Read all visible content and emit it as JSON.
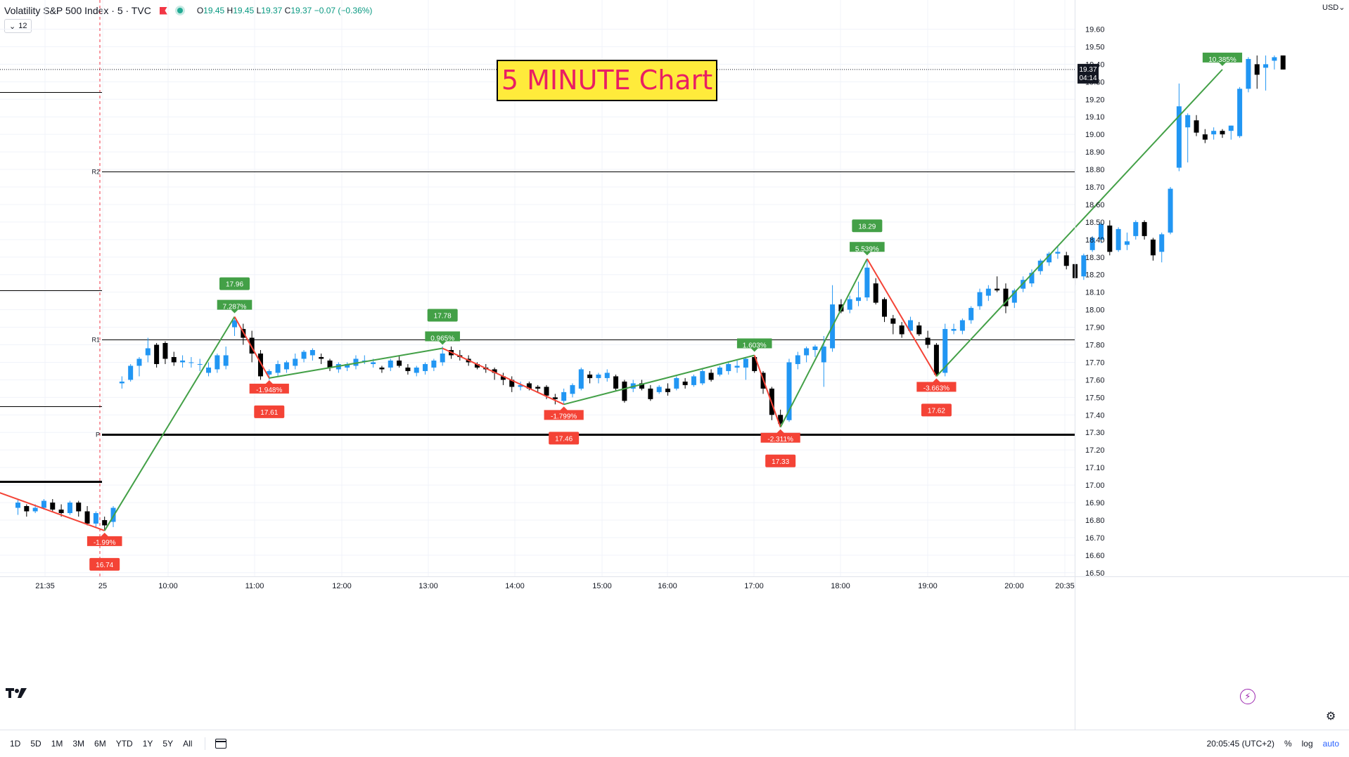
{
  "header": {
    "symbol_title": "Volatility S&P 500 Index · 5 · TVC",
    "ohlc": {
      "open_label": "O",
      "open": "19.45",
      "high_label": "H",
      "high": "19.45",
      "low_label": "L",
      "low": "19.37",
      "close_label": "C",
      "close": "19.37",
      "change": "−0.07 (−0.36%)"
    },
    "indicator_count": "12",
    "currency": "USD"
  },
  "overlay_title": "5 MINUTE Chart",
  "colors": {
    "up": "#2196f3",
    "down": "#000000",
    "zigzag_up": "#43a047",
    "zigzag_down": "#f44336",
    "label_up": "#43a047",
    "label_down": "#f44336",
    "title_bg": "#ffeb3b",
    "title_text": "#e91e63"
  },
  "chart_data": {
    "type": "candlestick",
    "ylim": [
      16.42,
      19.75
    ],
    "y_ticks": [
      16.5,
      16.6,
      16.7,
      16.8,
      16.9,
      17.0,
      17.1,
      17.2,
      17.3,
      17.4,
      17.5,
      17.6,
      17.7,
      17.8,
      17.9,
      18.0,
      18.1,
      18.2,
      18.3,
      18.4,
      18.5,
      18.6,
      18.7,
      18.8,
      18.9,
      19.0,
      19.1,
      19.2,
      19.3,
      19.4,
      19.5,
      19.6
    ],
    "x_ticks": [
      "21:35",
      "25",
      "10:00",
      "11:00",
      "12:00",
      "13:00",
      "14:00",
      "15:00",
      "16:00",
      "17:00",
      "18:00",
      "19:00",
      "20:00",
      "20:35"
    ],
    "last_price": "19.37",
    "countdown": "04:14",
    "pivot_levels": [
      {
        "label": "R2",
        "value": 18.79,
        "weight": "thin"
      },
      {
        "label": "R1",
        "value": 17.83,
        "weight": "thin"
      },
      {
        "label": "P",
        "value": 17.29,
        "weight": "thick"
      },
      {
        "label": "",
        "value": 19.24,
        "weight": "thin",
        "session": "prior"
      },
      {
        "label": "",
        "value": 18.11,
        "weight": "thin",
        "session": "prior"
      },
      {
        "label": "",
        "value": 17.45,
        "weight": "thin",
        "session": "prior"
      },
      {
        "label": "",
        "value": 17.02,
        "weight": "thick",
        "session": "prior"
      }
    ],
    "candles": [
      [
        16.87,
        16.92,
        16.83,
        16.9
      ],
      [
        16.88,
        16.89,
        16.82,
        16.85
      ],
      [
        16.85,
        16.89,
        16.84,
        16.87
      ],
      [
        16.87,
        16.92,
        16.86,
        16.91
      ],
      [
        16.9,
        16.92,
        16.85,
        16.86
      ],
      [
        16.86,
        16.89,
        16.82,
        16.84
      ],
      [
        16.84,
        16.91,
        16.83,
        16.9
      ],
      [
        16.9,
        16.91,
        16.82,
        16.85
      ],
      [
        16.85,
        16.88,
        16.77,
        16.78
      ],
      [
        16.78,
        16.85,
        16.76,
        16.84
      ],
      [
        16.8,
        16.82,
        16.74,
        16.77
      ],
      [
        16.79,
        16.88,
        16.76,
        16.87
      ],
      [
        17.58,
        17.62,
        17.55,
        17.59
      ],
      [
        17.6,
        17.69,
        17.59,
        17.68
      ],
      [
        17.68,
        17.73,
        17.62,
        17.72
      ],
      [
        17.74,
        17.84,
        17.7,
        17.78
      ],
      [
        17.8,
        17.81,
        17.67,
        17.69
      ],
      [
        17.81,
        17.82,
        17.69,
        17.72
      ],
      [
        17.73,
        17.76,
        17.68,
        17.7
      ],
      [
        17.7,
        17.74,
        17.67,
        17.71
      ],
      [
        17.7,
        17.73,
        17.67,
        17.7
      ],
      [
        17.69,
        17.72,
        17.65,
        17.69
      ],
      [
        17.64,
        17.7,
        17.62,
        17.67
      ],
      [
        17.66,
        17.75,
        17.64,
        17.74
      ],
      [
        17.68,
        17.79,
        17.66,
        17.74
      ],
      [
        17.9,
        17.96,
        17.85,
        17.94
      ],
      [
        17.89,
        17.92,
        17.8,
        17.84
      ],
      [
        17.84,
        17.88,
        17.7,
        17.75
      ],
      [
        17.75,
        17.77,
        17.6,
        17.62
      ],
      [
        17.63,
        17.66,
        17.6,
        17.65
      ],
      [
        17.64,
        17.71,
        17.62,
        17.69
      ],
      [
        17.66,
        17.71,
        17.64,
        17.7
      ],
      [
        17.68,
        17.75,
        17.66,
        17.72
      ],
      [
        17.72,
        17.77,
        17.7,
        17.76
      ],
      [
        17.74,
        17.78,
        17.71,
        17.77
      ],
      [
        17.73,
        17.75,
        17.69,
        17.72
      ],
      [
        17.71,
        17.72,
        17.65,
        17.67
      ],
      [
        17.66,
        17.7,
        17.64,
        17.69
      ],
      [
        17.67,
        17.7,
        17.65,
        17.69
      ],
      [
        17.68,
        17.74,
        17.66,
        17.72
      ],
      [
        17.71,
        17.74,
        17.69,
        17.71
      ],
      [
        17.69,
        17.72,
        17.67,
        17.7
      ],
      [
        17.67,
        17.68,
        17.64,
        17.66
      ],
      [
        17.67,
        17.72,
        17.65,
        17.71
      ],
      [
        17.71,
        17.74,
        17.67,
        17.68
      ],
      [
        17.67,
        17.69,
        17.63,
        17.65
      ],
      [
        17.64,
        17.68,
        17.62,
        17.67
      ],
      [
        17.65,
        17.7,
        17.63,
        17.69
      ],
      [
        17.67,
        17.72,
        17.65,
        17.71
      ],
      [
        17.7,
        17.79,
        17.68,
        17.75
      ],
      [
        17.77,
        17.79,
        17.72,
        17.74
      ],
      [
        17.74,
        17.77,
        17.71,
        17.73
      ],
      [
        17.72,
        17.74,
        17.68,
        17.7
      ],
      [
        17.69,
        17.7,
        17.66,
        17.67
      ],
      [
        17.67,
        17.69,
        17.64,
        17.66
      ],
      [
        17.66,
        17.67,
        17.6,
        17.64
      ],
      [
        17.62,
        17.64,
        17.57,
        17.6
      ],
      [
        17.6,
        17.62,
        17.53,
        17.56
      ],
      [
        17.56,
        17.59,
        17.54,
        17.57
      ],
      [
        17.58,
        17.59,
        17.54,
        17.55
      ],
      [
        17.56,
        17.57,
        17.53,
        17.55
      ],
      [
        17.56,
        17.57,
        17.49,
        17.51
      ],
      [
        17.5,
        17.52,
        17.46,
        17.49
      ],
      [
        17.48,
        17.55,
        17.46,
        17.53
      ],
      [
        17.52,
        17.58,
        17.5,
        17.57
      ],
      [
        17.55,
        17.67,
        17.54,
        17.66
      ],
      [
        17.63,
        17.65,
        17.58,
        17.61
      ],
      [
        17.61,
        17.64,
        17.58,
        17.63
      ],
      [
        17.61,
        17.66,
        17.59,
        17.64
      ],
      [
        17.62,
        17.63,
        17.54,
        17.55
      ],
      [
        17.59,
        17.6,
        17.47,
        17.48
      ],
      [
        17.55,
        17.6,
        17.53,
        17.58
      ],
      [
        17.58,
        17.6,
        17.54,
        17.55
      ],
      [
        17.55,
        17.57,
        17.48,
        17.49
      ],
      [
        17.53,
        17.57,
        17.52,
        17.56
      ],
      [
        17.55,
        17.58,
        17.51,
        17.53
      ],
      [
        17.55,
        17.62,
        17.54,
        17.61
      ],
      [
        17.59,
        17.61,
        17.55,
        17.57
      ],
      [
        17.57,
        17.63,
        17.56,
        17.62
      ],
      [
        17.58,
        17.66,
        17.57,
        17.65
      ],
      [
        17.64,
        17.66,
        17.59,
        17.6
      ],
      [
        17.63,
        17.68,
        17.62,
        17.67
      ],
      [
        17.65,
        17.7,
        17.63,
        17.69
      ],
      [
        17.67,
        17.71,
        17.64,
        17.68
      ],
      [
        17.67,
        17.73,
        17.6,
        17.72
      ],
      [
        17.73,
        17.74,
        17.64,
        17.65
      ],
      [
        17.64,
        17.65,
        17.52,
        17.55
      ],
      [
        17.55,
        17.56,
        17.37,
        17.4
      ],
      [
        17.4,
        17.43,
        17.33,
        17.35
      ],
      [
        17.37,
        17.72,
        17.36,
        17.7
      ],
      [
        17.69,
        17.76,
        17.66,
        17.74
      ],
      [
        17.74,
        17.79,
        17.7,
        17.78
      ],
      [
        17.77,
        17.8,
        17.73,
        17.79
      ],
      [
        17.7,
        17.85,
        17.56,
        17.79
      ],
      [
        17.78,
        18.14,
        17.76,
        18.03
      ],
      [
        18.03,
        18.06,
        17.98,
        17.99
      ],
      [
        18.0,
        18.08,
        17.98,
        18.06
      ],
      [
        18.05,
        18.16,
        18.02,
        18.07
      ],
      [
        18.07,
        18.28,
        18.05,
        18.24
      ],
      [
        18.15,
        18.18,
        18.03,
        18.04
      ],
      [
        18.06,
        18.07,
        17.93,
        17.96
      ],
      [
        17.95,
        17.97,
        17.86,
        17.92
      ],
      [
        17.91,
        17.93,
        17.84,
        17.86
      ],
      [
        17.88,
        17.96,
        17.86,
        17.94
      ],
      [
        17.91,
        17.93,
        17.85,
        17.86
      ],
      [
        17.84,
        17.88,
        17.78,
        17.8
      ],
      [
        17.8,
        17.81,
        17.62,
        17.63
      ],
      [
        17.64,
        17.92,
        17.62,
        17.89
      ],
      [
        17.88,
        17.92,
        17.86,
        17.89
      ],
      [
        17.88,
        17.95,
        17.86,
        17.94
      ],
      [
        17.94,
        18.02,
        17.92,
        18.01
      ],
      [
        18.02,
        18.12,
        18.0,
        18.1
      ],
      [
        18.08,
        18.14,
        18.05,
        18.12
      ],
      [
        18.12,
        18.19,
        18.1,
        18.11
      ],
      [
        18.12,
        18.15,
        17.98,
        18.02
      ],
      [
        18.04,
        18.12,
        18.01,
        18.11
      ],
      [
        18.12,
        18.19,
        18.1,
        18.17
      ],
      [
        18.15,
        18.23,
        18.13,
        18.21
      ],
      [
        18.22,
        18.29,
        18.2,
        18.28
      ],
      [
        18.27,
        18.33,
        18.25,
        18.32
      ],
      [
        18.32,
        18.36,
        18.29,
        18.33
      ],
      [
        18.31,
        18.33,
        18.23,
        18.25
      ],
      [
        18.26,
        18.28,
        18.14,
        18.18
      ],
      [
        18.19,
        18.32,
        18.17,
        18.31
      ],
      [
        18.34,
        18.42,
        18.33,
        18.41
      ],
      [
        18.4,
        18.5,
        18.38,
        18.49
      ],
      [
        18.48,
        18.51,
        18.31,
        18.33
      ],
      [
        18.34,
        18.47,
        18.33,
        18.46
      ],
      [
        18.37,
        18.44,
        18.34,
        18.39
      ],
      [
        18.42,
        18.51,
        18.4,
        18.5
      ],
      [
        18.5,
        18.51,
        18.4,
        18.42
      ],
      [
        18.4,
        18.41,
        18.28,
        18.31
      ],
      [
        18.33,
        18.44,
        18.27,
        18.43
      ],
      [
        18.44,
        18.7,
        18.43,
        18.69
      ],
      [
        18.81,
        19.29,
        18.79,
        19.16
      ],
      [
        19.04,
        19.12,
        18.84,
        19.11
      ],
      [
        19.08,
        19.11,
        18.99,
        19.01
      ],
      [
        19.0,
        19.03,
        18.95,
        18.97
      ],
      [
        19.0,
        19.04,
        18.97,
        19.02
      ],
      [
        19.02,
        19.03,
        18.98,
        19.0
      ],
      [
        19.02,
        19.05,
        18.97,
        19.05
      ],
      [
        18.99,
        19.27,
        18.98,
        19.26
      ],
      [
        19.26,
        19.44,
        19.24,
        19.43
      ],
      [
        19.4,
        19.45,
        19.26,
        19.34
      ],
      [
        19.38,
        19.45,
        19.25,
        19.4
      ],
      [
        19.42,
        19.45,
        19.37,
        19.44
      ],
      [
        19.45,
        19.45,
        19.37,
        19.37
      ]
    ],
    "zigzag_points": [
      [
        -4,
        16.99
      ],
      [
        10,
        16.74
      ],
      [
        25,
        17.96
      ],
      [
        29,
        17.61
      ],
      [
        49,
        17.78
      ],
      [
        63,
        17.46
      ],
      [
        85,
        17.74
      ],
      [
        88,
        17.33
      ],
      [
        98,
        18.29
      ],
      [
        106,
        17.62
      ],
      [
        139,
        19.37
      ]
    ],
    "swing_labels": [
      {
        "pct": "-1.99%",
        "price": "16.74",
        "dir": "down",
        "point": 1
      },
      {
        "pct": "7.287%",
        "price": "17.96",
        "dir": "up",
        "point": 2
      },
      {
        "pct": "-1.948%",
        "price": "17.61",
        "dir": "down",
        "point": 3
      },
      {
        "pct": "0.965%",
        "price": "17.78",
        "dir": "up",
        "point": 4
      },
      {
        "pct": "-1.799%",
        "price": "17.46",
        "dir": "down",
        "point": 5
      },
      {
        "pct": "1.603%",
        "price": "",
        "dir": "up",
        "point": 6
      },
      {
        "pct": "-2.311%",
        "price": "17.33",
        "dir": "down",
        "point": 7
      },
      {
        "pct": "5.539%",
        "price": "18.29",
        "dir": "up",
        "point": 8
      },
      {
        "pct": "-3.663%",
        "price": "17.62",
        "dir": "down",
        "point": 9
      },
      {
        "pct": "10.385%",
        "price": "",
        "dir": "up",
        "point": 10
      }
    ]
  },
  "footer": {
    "ranges": [
      "1D",
      "5D",
      "1M",
      "3M",
      "6M",
      "YTD",
      "1Y",
      "5Y",
      "All"
    ],
    "clock": "20:05:45 (UTC+2)",
    "percent_label": "%",
    "log_label": "log",
    "auto_label": "auto"
  }
}
